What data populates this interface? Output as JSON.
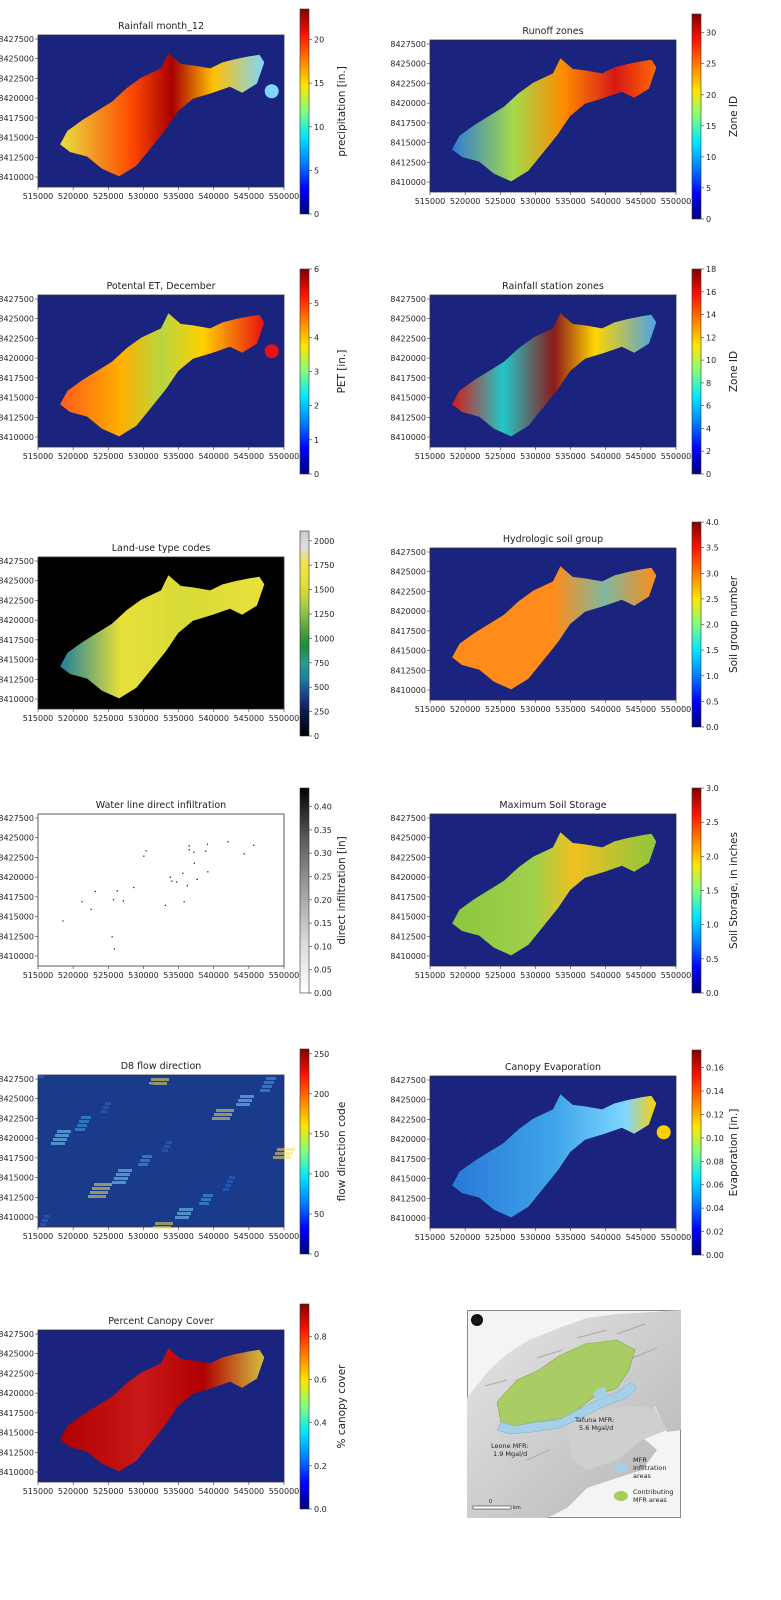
{
  "chart_data": [
    {
      "type": "heatmap",
      "title": "Rainfall month_12",
      "xticks": [
        "515000",
        "520000",
        "525000",
        "530000",
        "535000",
        "540000",
        "545000",
        "550000"
      ],
      "yticks": [
        "8427500",
        "8425000",
        "8422500",
        "8420000",
        "8417500",
        "8415000",
        "8412500",
        "8410000"
      ],
      "colorbar": {
        "label": "precipitation [in.]",
        "ticks": [
          "0",
          "5",
          "10",
          "15",
          "20"
        ],
        "range": [
          0,
          23.5
        ],
        "colormap": "jet"
      },
      "background": "#1a237e",
      "grid": false
    },
    {
      "type": "heatmap",
      "title": "Runoff zones",
      "xticks": [
        "515000",
        "520000",
        "525000",
        "530000",
        "535000",
        "540000",
        "545000",
        "550000"
      ],
      "yticks": [
        "8427500",
        "8425000",
        "8422500",
        "8420000",
        "8417500",
        "8415000",
        "8412500",
        "8410000"
      ],
      "colorbar": {
        "label": "Zone ID",
        "ticks": [
          "0",
          "5",
          "10",
          "15",
          "20",
          "25",
          "30"
        ],
        "range": [
          0,
          33
        ],
        "colormap": "jet"
      },
      "background": "#1a237e",
      "grid": false
    },
    {
      "type": "heatmap",
      "title": "Potental ET, December",
      "xticks": [
        "515000",
        "520000",
        "525000",
        "530000",
        "535000",
        "540000",
        "545000",
        "550000"
      ],
      "yticks": [
        "8427500",
        "8425000",
        "8422500",
        "8420000",
        "8417500",
        "8415000",
        "8412500",
        "8410000"
      ],
      "colorbar": {
        "label": "PET [in.]",
        "ticks": [
          "0",
          "1",
          "2",
          "3",
          "4",
          "5",
          "6"
        ],
        "range": [
          0,
          6
        ],
        "colormap": "jet"
      },
      "background": "#1a237e",
      "grid": false
    },
    {
      "type": "heatmap",
      "title": "Rainfall station zones",
      "xticks": [
        "515000",
        "520000",
        "525000",
        "530000",
        "535000",
        "540000",
        "545000",
        "550000"
      ],
      "yticks": [
        "8427500",
        "8425000",
        "8422500",
        "8420000",
        "8417500",
        "8415000",
        "8412500",
        "8410000"
      ],
      "colorbar": {
        "label": "Zone ID",
        "ticks": [
          "0",
          "2",
          "4",
          "6",
          "8",
          "10",
          "12",
          "14",
          "16",
          "18"
        ],
        "range": [
          0,
          18
        ],
        "colormap": "jet"
      },
      "background": "#1a237e",
      "grid": false
    },
    {
      "type": "heatmap",
      "title": "Land-use type codes",
      "xticks": [
        "515000",
        "520000",
        "525000",
        "530000",
        "535000",
        "540000",
        "545000",
        "550000"
      ],
      "yticks": [
        "8427500",
        "8425000",
        "8422500",
        "8420000",
        "8417500",
        "8415000",
        "8412500",
        "8410000"
      ],
      "colorbar": {
        "label": "",
        "ticks": [
          "0",
          "250",
          "500",
          "750",
          "1000",
          "1250",
          "1500",
          "1750",
          "2000"
        ],
        "range": [
          0,
          2100
        ],
        "colormap": "discrete"
      },
      "background": "#000000",
      "grid": false
    },
    {
      "type": "heatmap",
      "title": "Hydrologic soil group",
      "xticks": [
        "515000",
        "520000",
        "525000",
        "530000",
        "535000",
        "540000",
        "545000",
        "550000"
      ],
      "yticks": [
        "8427500",
        "8425000",
        "8422500",
        "8420000",
        "8417500",
        "8415000",
        "8412500",
        "8410000"
      ],
      "colorbar": {
        "label": "Soil group number",
        "ticks": [
          "0.0",
          "0.5",
          "1.0",
          "1.5",
          "2.0",
          "2.5",
          "3.0",
          "3.5",
          "4.0"
        ],
        "range": [
          0,
          4
        ],
        "colormap": "jet"
      },
      "background": "#1a237e",
      "grid": false
    },
    {
      "type": "heatmap",
      "title": "Water line direct infiltration",
      "xticks": [
        "515000",
        "520000",
        "525000",
        "530000",
        "535000",
        "540000",
        "545000",
        "550000"
      ],
      "yticks": [
        "8427500",
        "8425000",
        "8422500",
        "8420000",
        "8417500",
        "8415000",
        "8412500",
        "8410000"
      ],
      "colorbar": {
        "label": "direct infiltration [in]",
        "ticks": [
          "0.00",
          "0.05",
          "0.10",
          "0.15",
          "0.20",
          "0.25",
          "0.30",
          "0.35",
          "0.40"
        ],
        "range": [
          0,
          0.44
        ],
        "colormap": "greys"
      },
      "background": "#ffffff",
      "grid": false
    },
    {
      "type": "heatmap",
      "title": "Maximum Soil Storage",
      "xticks": [
        "515000",
        "520000",
        "525000",
        "530000",
        "535000",
        "540000",
        "545000",
        "550000"
      ],
      "yticks": [
        "8427500",
        "8425000",
        "8422500",
        "8420000",
        "8417500",
        "8415000",
        "8412500",
        "8410000"
      ],
      "colorbar": {
        "label": "Soil Storage, in inches",
        "ticks": [
          "0.0",
          "0.5",
          "1.0",
          "1.5",
          "2.0",
          "2.5",
          "3.0"
        ],
        "range": [
          0,
          3
        ],
        "colormap": "jet"
      },
      "background": "#1a237e",
      "grid": false
    },
    {
      "type": "heatmap",
      "title": "D8 flow direction",
      "xticks": [
        "515000",
        "520000",
        "525000",
        "530000",
        "535000",
        "540000",
        "545000",
        "550000"
      ],
      "yticks": [
        "8427500",
        "8425000",
        "8422500",
        "8420000",
        "8417500",
        "8415000",
        "8412500",
        "8410000"
      ],
      "colorbar": {
        "label": "flow direction code",
        "ticks": [
          "0",
          "50",
          "100",
          "150",
          "200",
          "250"
        ],
        "range": [
          0,
          256
        ],
        "colormap": "jet"
      },
      "background": "#1a3a8c",
      "grid": false
    },
    {
      "type": "heatmap",
      "title": "Canopy Evaporation",
      "xticks": [
        "515000",
        "520000",
        "525000",
        "530000",
        "535000",
        "540000",
        "545000",
        "550000"
      ],
      "yticks": [
        "8427500",
        "8425000",
        "8422500",
        "8420000",
        "8417500",
        "8415000",
        "8412500",
        "8410000"
      ],
      "colorbar": {
        "label": "Evaporation [in.]",
        "ticks": [
          "0.00",
          "0.02",
          "0.04",
          "0.06",
          "0.08",
          "0.10",
          "0.12",
          "0.14",
          "0.16"
        ],
        "range": [
          0,
          0.175
        ],
        "colormap": "jet"
      },
      "background": "#1a237e",
      "grid": false
    },
    {
      "type": "heatmap",
      "title": "Percent Canopy Cover",
      "xticks": [
        "515000",
        "520000",
        "525000",
        "530000",
        "535000",
        "540000",
        "545000",
        "550000"
      ],
      "yticks": [
        "8427500",
        "8425000",
        "8422500",
        "8420000",
        "8417500",
        "8415000",
        "8412500",
        "8410000"
      ],
      "colorbar": {
        "label": "% canopy cover",
        "ticks": [
          "0.0",
          "0.2",
          "0.4",
          "0.6",
          "0.8"
        ],
        "range": [
          0,
          0.95
        ],
        "colormap": "jet"
      },
      "background": "#1a237e",
      "grid": false
    }
  ],
  "inset_map": {
    "north_label": "N",
    "labels": {
      "tafuna": [
        "Tafuna MFR:",
        "5.6 Mgal/d"
      ],
      "leone": [
        "Leone MFR:",
        "1.9 Mgal/d"
      ]
    },
    "legend": [
      {
        "lines": [
          "MFR",
          "infiltration",
          "areas"
        ],
        "color": "#a6cfe8"
      },
      {
        "lines": [
          "Contributing",
          "MFR areas"
        ],
        "color": "#a6cc5a"
      }
    ],
    "scale_label": "km",
    "scale_zero": "0"
  }
}
